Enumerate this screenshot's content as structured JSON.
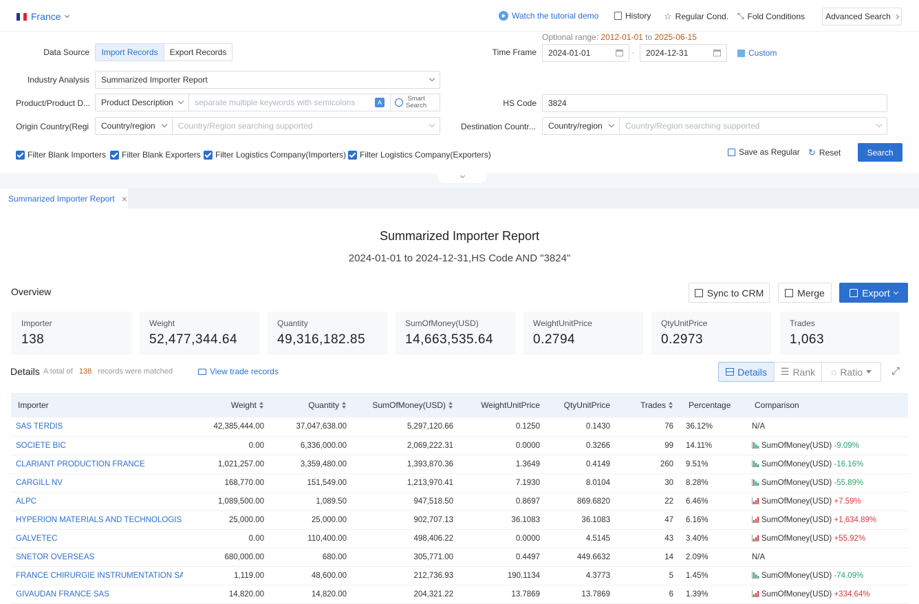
{
  "topbar": {
    "country": "France",
    "tutorial": "Watch the tutorial demo",
    "history": "History",
    "regular": "Regular Cond.",
    "fold": "Fold Conditions",
    "advanced": "Advanced Search"
  },
  "form": {
    "optional_range_label": "Optional range",
    "optional_range_start": "2012-01-01",
    "optional_range_to": "to",
    "optional_range_end": "2025-06-15",
    "data_source_label": "Data Source",
    "import_records": "Import Records",
    "export_records": "Export Records",
    "time_frame_label": "Time Frame",
    "date_from": "2024-01-01",
    "date_to": "2024-12-31",
    "custom": "Custom",
    "industry_label": "Industry Analysis",
    "industry_value": "Summarized Importer Report",
    "product_label": "Product/Product D...",
    "product_select": "Product Description",
    "product_placeholder": "separate multiple keywords with semicolons",
    "smart_search_1": "Smart",
    "smart_search_2": "Search",
    "hs_label": "HS Code",
    "hs_value": "3824",
    "origin_label": "Origin Country(Regi...",
    "origin_select": "Country/region",
    "origin_placeholder": "Country/Region searching supported",
    "dest_label": "Destination Countr...",
    "dest_select": "Country/region",
    "dest_placeholder": "Country/Region searching supported",
    "filters": [
      "Filter Blank Importers",
      "Filter Blank Exporters",
      "Filter Logistics Company(Importers)",
      "Filter Logistics Company(Exporters)"
    ],
    "save_regular": "Save as Regular",
    "reset": "Reset",
    "search": "Search"
  },
  "tab": {
    "label": "Summarized Importer Report"
  },
  "report": {
    "title": "Summarized Importer Report",
    "subtitle": "2024-01-01 to 2024-12-31,HS Code AND \"3824\""
  },
  "overview": {
    "label": "Overview",
    "sync": "Sync to CRM",
    "merge": "Merge",
    "export": "Export",
    "stats": [
      {
        "title": "Importer",
        "value": "138"
      },
      {
        "title": "Weight",
        "value": "52,477,344.64"
      },
      {
        "title": "Quantity",
        "value": "49,316,182.85"
      },
      {
        "title": "SumOfMoney(USD)",
        "value": "14,663,535.64"
      },
      {
        "title": "WeightUnitPrice",
        "value": "0.2794"
      },
      {
        "title": "QtyUnitPrice",
        "value": "0.2973"
      },
      {
        "title": "Trades",
        "value": "1,063"
      }
    ]
  },
  "details": {
    "label": "Details",
    "total_prefix": "A total of",
    "total_count": "138",
    "total_suffix": "records were matched",
    "view_trade": "View trade records",
    "view_details": "Details",
    "view_rank": "Rank",
    "view_ratio": "Ratio"
  },
  "table": {
    "headers": [
      "Importer",
      "Weight",
      "Quantity",
      "SumOfMoney(USD)",
      "WeightUnitPrice",
      "QtyUnitPrice",
      "Trades",
      "Percentage",
      "Comparison"
    ],
    "rows": [
      {
        "name": "SAS TERDIS",
        "weight": "42,385,444.00",
        "qty": "37,047,638.00",
        "money": "5,297,120.66",
        "wup": "0.1250",
        "qup": "0.1430",
        "trades": "76",
        "pct": "36.12%",
        "cmp_label": "N/A",
        "cmp_change": "",
        "dir": "none"
      },
      {
        "name": "SOCIETE BIC",
        "weight": "0.00",
        "qty": "6,336,000.00",
        "money": "2,069,222.31",
        "wup": "0.0000",
        "qup": "0.3266",
        "trades": "99",
        "pct": "14.11%",
        "cmp_label": "SumOfMoney(USD)",
        "cmp_change": "-9.09%",
        "dir": "down"
      },
      {
        "name": "CLARIANT PRODUCTION FRANCE",
        "weight": "1,021,257.00",
        "qty": "3,359,480.00",
        "money": "1,393,870.36",
        "wup": "1.3649",
        "qup": "0.4149",
        "trades": "260",
        "pct": "9.51%",
        "cmp_label": "SumOfMoney(USD)",
        "cmp_change": "-16.16%",
        "dir": "down"
      },
      {
        "name": "CARGILL NV",
        "weight": "168,770.00",
        "qty": "151,549.00",
        "money": "1,213,970.41",
        "wup": "7.1930",
        "qup": "8.0104",
        "trades": "30",
        "pct": "8.28%",
        "cmp_label": "SumOfMoney(USD)",
        "cmp_change": "-55.89%",
        "dir": "down"
      },
      {
        "name": "ALPC",
        "weight": "1,089,500.00",
        "qty": "1,089.50",
        "money": "947,518.50",
        "wup": "0.8697",
        "qup": "869.6820",
        "trades": "22",
        "pct": "6.46%",
        "cmp_label": "SumOfMoney(USD)",
        "cmp_change": "+7.59%",
        "dir": "up"
      },
      {
        "name": "HYPERION MATERIALS AND TECHNOLOGIS",
        "weight": "25,000.00",
        "qty": "25,000.00",
        "money": "902,707.13",
        "wup": "36.1083",
        "qup": "36.1083",
        "trades": "47",
        "pct": "6.16%",
        "cmp_label": "SumOfMoney(USD)",
        "cmp_change": "+1,634.89%",
        "dir": "up"
      },
      {
        "name": "GALVETEC",
        "weight": "0.00",
        "qty": "110,400.00",
        "money": "498,406.22",
        "wup": "0.0000",
        "qup": "4.5145",
        "trades": "43",
        "pct": "3.40%",
        "cmp_label": "SumOfMoney(USD)",
        "cmp_change": "+55.92%",
        "dir": "up"
      },
      {
        "name": "SNETOR OVERSEAS",
        "weight": "680,000.00",
        "qty": "680.00",
        "money": "305,771.00",
        "wup": "0.4497",
        "qup": "449.6632",
        "trades": "14",
        "pct": "2.09%",
        "cmp_label": "N/A",
        "cmp_change": "",
        "dir": "none"
      },
      {
        "name": "FRANCE CHIRURGIE INSTRUMENTATION SAS F...",
        "weight": "1,119.00",
        "qty": "48,600.00",
        "money": "212,736.93",
        "wup": "190.1134",
        "qup": "4.3773",
        "trades": "5",
        "pct": "1.45%",
        "cmp_label": "SumOfMoney(USD)",
        "cmp_change": "-74.09%",
        "dir": "down"
      },
      {
        "name": "GIVAUDAN FRANCE SAS",
        "weight": "14,820.00",
        "qty": "14,820.00",
        "money": "204,321.22",
        "wup": "13.7869",
        "qup": "13.7869",
        "trades": "6",
        "pct": "1.39%",
        "cmp_label": "SumOfMoney(USD)",
        "cmp_change": "+334.64%",
        "dir": "up"
      }
    ]
  },
  "colors": {
    "accent": "#2b6fcf",
    "negative": "#2aa36b",
    "positive": "#d9363e",
    "highlight": "#c05a17"
  }
}
